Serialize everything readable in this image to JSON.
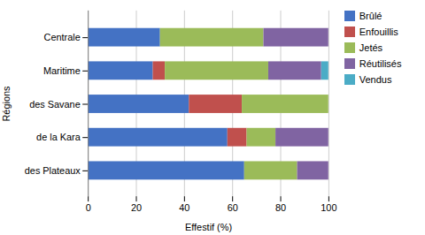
{
  "chart_data": {
    "type": "bar",
    "orientation": "horizontal",
    "stacked": true,
    "categories": [
      "Centrale",
      "Maritime",
      "des Savane",
      "de la Kara",
      "des Plateaux"
    ],
    "series": [
      {
        "name": "Brûlé",
        "color": "#4472C4",
        "values": [
          30,
          27,
          42,
          58,
          65
        ]
      },
      {
        "name": "Enfouillis",
        "color": "#C0504D",
        "values": [
          0,
          5,
          22,
          8,
          0
        ]
      },
      {
        "name": "Jetés",
        "color": "#9BBB59",
        "values": [
          43,
          43,
          36,
          12,
          22
        ]
      },
      {
        "name": "Réutilisés",
        "color": "#8064A2",
        "values": [
          27,
          22,
          0,
          22,
          13
        ]
      },
      {
        "name": "Vendus",
        "color": "#4BACC6",
        "values": [
          0,
          3,
          0,
          0,
          0
        ]
      }
    ],
    "xlabel": "Effestif (%)",
    "ylabel": "Régions",
    "xlim": [
      0,
      100
    ],
    "xticks": [
      0,
      20,
      40,
      60,
      80,
      100
    ],
    "grid": true,
    "legend": "right"
  }
}
